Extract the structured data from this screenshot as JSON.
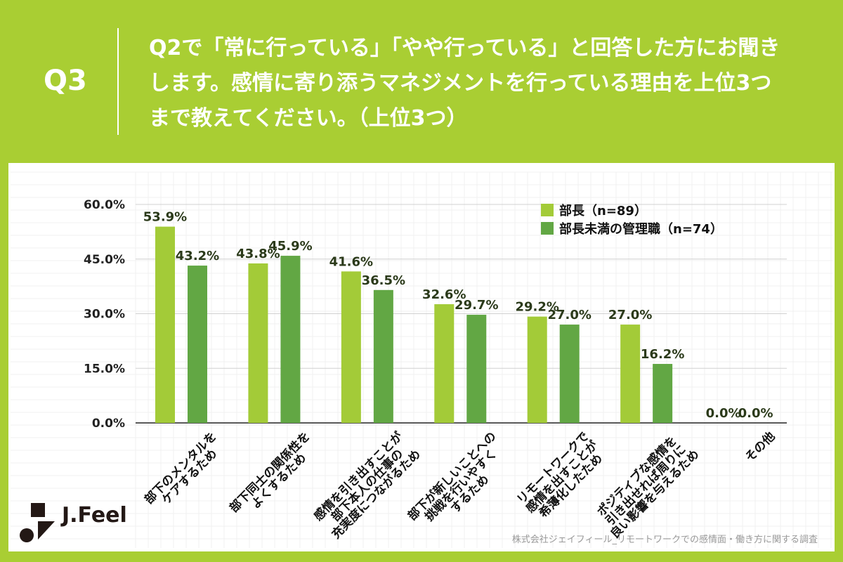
{
  "header": {
    "question_number": "Q3",
    "question_text": "Q2で「常に行っている」「やや行っている」と回答した方にお聞きします。感情に寄り添うマネジメントを行っている理由を上位3つまで教えてください。（上位3つ）"
  },
  "logo": {
    "text": "J.Feel"
  },
  "source": "株式会社ジェイフィール_リモートワークでの感情面・働き方に関する調査",
  "colors": {
    "background": "#a9ce33",
    "series1": "#a3cb38",
    "series2": "#62a744"
  },
  "chart_data": {
    "type": "bar",
    "categories": [
      "部下のメンタルを\nケアするため",
      "部下同士の関係性を\nよくするため",
      "感情を引き出すことが\n部下本人の仕事の\n充実度につながるため",
      "部下が新しいことへの\n挑戦を行いやすく\nするため",
      "リモートワークで\n感情を出すことが\n希薄化したため",
      "ポジティブな感情を\n引き出せれば周りに\n良い影響を与えるため",
      "その他"
    ],
    "series": [
      {
        "name": "部長（n=89）",
        "values": [
          53.9,
          43.8,
          41.6,
          32.6,
          29.2,
          27.0,
          0.0
        ]
      },
      {
        "name": "部長未満の管理職（n=74）",
        "values": [
          43.2,
          45.9,
          36.5,
          29.7,
          27.0,
          16.2,
          0.0
        ]
      }
    ],
    "value_labels": [
      [
        "53.9%",
        "43.8%",
        "41.6%",
        "32.6%",
        "29.2%",
        "27.0%",
        "0.0%"
      ],
      [
        "43.2%",
        "45.9%",
        "36.5%",
        "29.7%",
        "27.0%",
        "16.2%",
        "0.0%"
      ]
    ],
    "yticks": [
      "0.0%",
      "15.0%",
      "30.0%",
      "45.0%",
      "60.0%"
    ],
    "ylim": [
      0,
      60
    ],
    "grid": true,
    "legend": "top-right"
  }
}
